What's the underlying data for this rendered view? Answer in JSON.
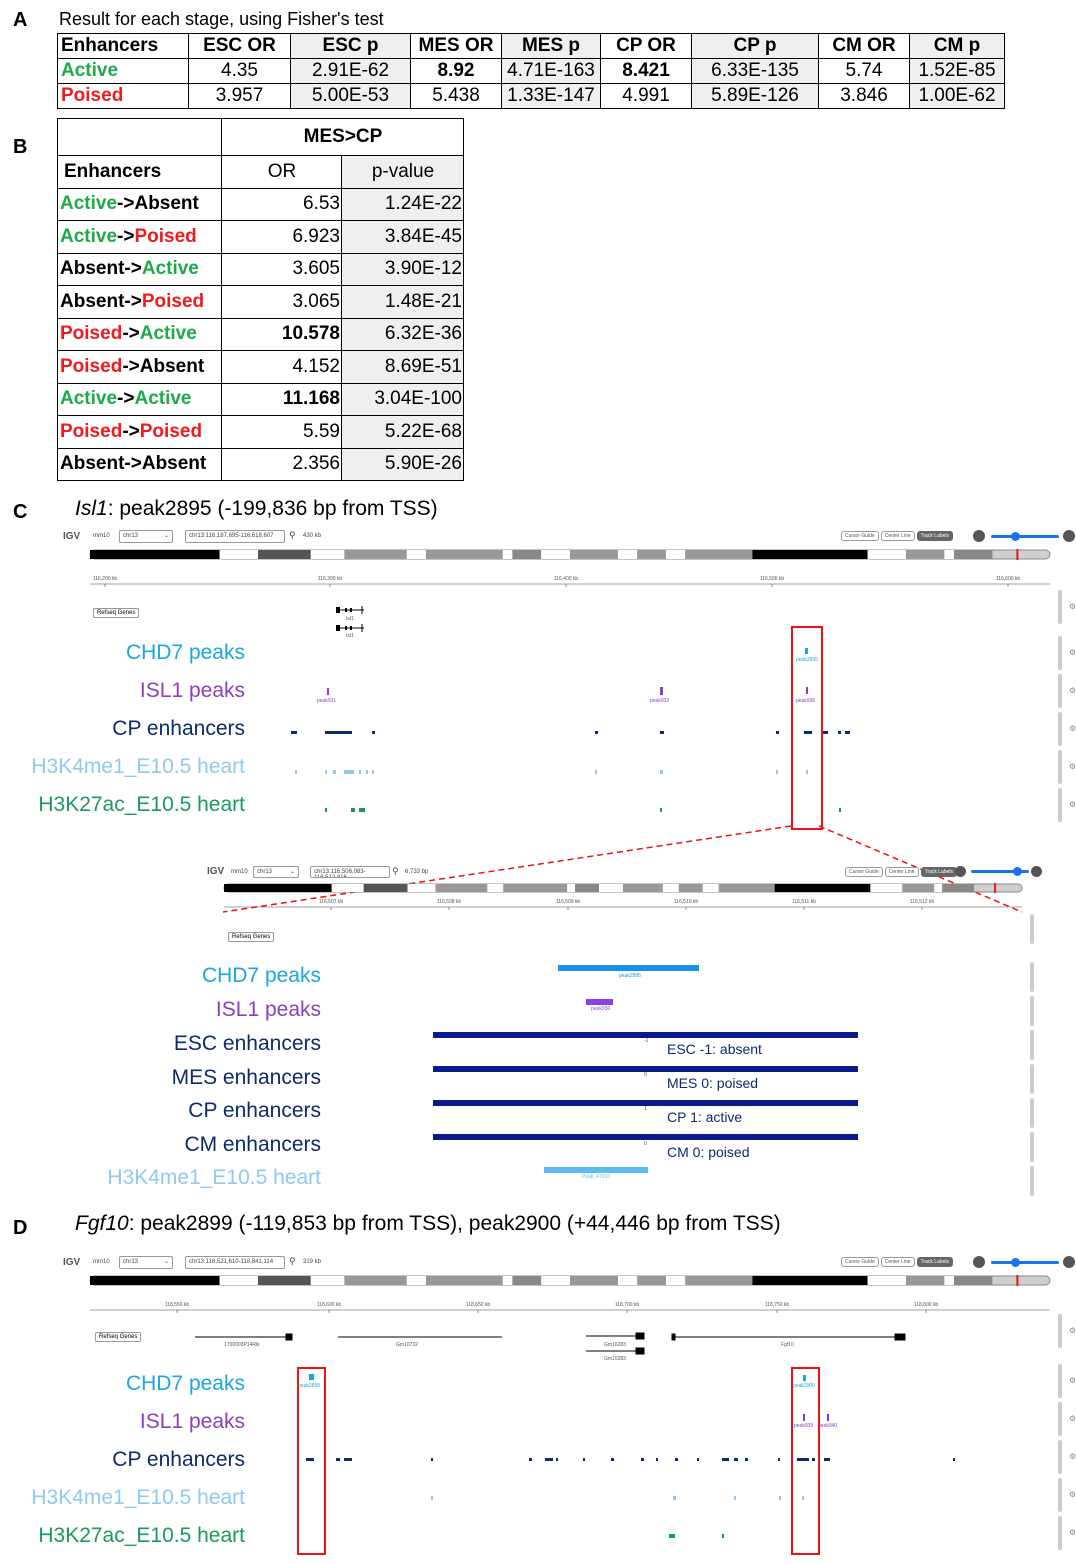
{
  "panel_labels": {
    "a": "A",
    "b": "B",
    "c": "C",
    "d": "D"
  },
  "panel_a": {
    "title": "Result for each stage, using Fisher's test",
    "headers": [
      "Enhancers",
      "ESC OR",
      "ESC p",
      "MES OR",
      "MES p",
      "CP OR",
      "CP p",
      "CM OR",
      "CM p"
    ],
    "rows": [
      {
        "label": "Active",
        "color": "#1faa4a",
        "values": [
          "4.35",
          "2.91E-62",
          "8.92",
          "4.71E-163",
          "8.421",
          "6.33E-135",
          "5.74",
          "1.52E-85"
        ]
      },
      {
        "label": "Poised",
        "color": "#ee1c1c",
        "values": [
          "3.957",
          "5.00E-53",
          "5.438",
          "1.33E-147",
          "4.991",
          "5.89E-126",
          "3.846",
          "1.00E-62"
        ]
      }
    ]
  },
  "panel_b": {
    "group_header": "MES>CP",
    "headers": [
      "Enhancers",
      "OR",
      "p-value"
    ],
    "rows": [
      {
        "from": "Active",
        "to": "Absent",
        "or": "6.53",
        "p": "1.24E-22"
      },
      {
        "from": "Active",
        "to": "Poised",
        "or": "6.923",
        "p": "3.84E-45"
      },
      {
        "from": "Absent",
        "to": "Active",
        "or": "3.605",
        "p": "3.90E-12"
      },
      {
        "from": "Absent",
        "to": "Poised",
        "or": "3.065",
        "p": "1.48E-21"
      },
      {
        "from": "Poised",
        "to": "Active",
        "or": "10.578",
        "p": "6.32E-36"
      },
      {
        "from": "Poised",
        "to": "Absent",
        "or": "4.152",
        "p": "8.69E-51"
      },
      {
        "from": "Active",
        "to": "Active",
        "or": "11.168",
        "p": "3.04E-100"
      },
      {
        "from": "Poised",
        "to": "Poised",
        "or": "5.59",
        "p": "5.22E-68"
      },
      {
        "from": "Absent",
        "to": "Absent",
        "or": "2.356",
        "p": "5.90E-26"
      }
    ],
    "arrow": "->",
    "state_colors": {
      "Active": "#1faa4a",
      "Poised": "#ee1c1c",
      "Absent": "#000000"
    }
  },
  "panel_c": {
    "gene": "Isl1",
    "title_rest": ": peak2895 (-199,836 bp from TSS)",
    "igv1": {
      "logo": "IGV",
      "genome": "mm10",
      "chrom": "chr13",
      "locus": "chr13:116,187,695-116,618,607",
      "width_text": "430 kb",
      "buttons": [
        "Cursor Guide",
        "Center Line",
        "Track Labels"
      ],
      "ruler": [
        "116,200 kb",
        "116,300 kb",
        "116,400 kb",
        "116,500 kb",
        "116,600 kb"
      ],
      "refseq_label": "Refseq Genes",
      "genes": [
        "Isl1",
        "Isl1"
      ],
      "peaks": {
        "chd7": [
          "peak2895"
        ],
        "isl1": [
          "peak931",
          "peak932",
          "peak936"
        ]
      }
    },
    "tracks1": [
      {
        "label": "CHD7 peaks",
        "color": "#1aa7e0"
      },
      {
        "label": "ISL1 peaks",
        "color": "#8a3fbf"
      },
      {
        "label": "CP enhancers",
        "color": "#0d2a6b"
      },
      {
        "label": "H3K4me1_E10.5 heart",
        "color": "#8fc9ee"
      },
      {
        "label": "H3K27ac_E10.5 heart",
        "color": "#1a9a5a"
      }
    ],
    "igv2": {
      "logo": "IGV",
      "genome": "mm10",
      "chrom": "chr13",
      "locus": "chr13:116,506,083-116,512,816",
      "width_text": "6,733 bp",
      "buttons": [
        "Cursor Guide",
        "Center Line",
        "Track Labels"
      ],
      "ruler": [
        "116,507 kb",
        "116,508 kb",
        "116,509 kb",
        "116,510 kb",
        "116,511 kb",
        "116,512 kb"
      ],
      "refseq_label": "Refseq Genes",
      "feature_labels": [
        "peak2895",
        "peak936",
        "Peak_47910"
      ]
    },
    "tracks2": [
      {
        "label": "CHD7 peaks",
        "color": "#1aa7e0"
      },
      {
        "label": "ISL1 peaks",
        "color": "#8a3fbf"
      },
      {
        "label": "ESC enhancers",
        "color": "#0d2a6b",
        "state": "ESC -1: absent",
        "score": "-1"
      },
      {
        "label": "MES enhancers",
        "color": "#0d2a6b",
        "state": "MES 0: poised",
        "score": "0"
      },
      {
        "label": "CP enhancers",
        "color": "#0d2a6b",
        "state": "CP 1: active",
        "score": "1"
      },
      {
        "label": "CM enhancers",
        "color": "#0d2a6b",
        "state": "CM 0: poised",
        "score": "0"
      },
      {
        "label": "H3K4me1_E10.5 heart",
        "color": "#8fc9ee"
      }
    ]
  },
  "panel_d": {
    "gene": "Fgf10",
    "title_rest": ": peak2899 (-119,853 bp from TSS), peak2900 (+44,446 bp from TSS)",
    "igv": {
      "logo": "IGV",
      "genome": "mm10",
      "chrom": "chr13",
      "locus": "chr13:118,521,610-118,841,114",
      "width_text": "319 kb",
      "buttons": [
        "Cursor Guide",
        "Center Line",
        "Track Labels"
      ],
      "ruler": [
        "118,550 kb",
        "118,600 kb",
        "118,650 kb",
        "118,700 kb",
        "118,750 kb",
        "118,800 kb"
      ],
      "refseq_label": "Refseq Genes",
      "genes": [
        "1700003P14Rik",
        "Gm10732",
        "Gm16283",
        "Gm16283",
        "Fgf10"
      ],
      "peaks": {
        "chd7": [
          "peak2899",
          "peak2900"
        ],
        "isl1": [
          "peak939",
          "peak940"
        ]
      }
    },
    "tracks": [
      {
        "label": "CHD7 peaks",
        "color": "#1aa7e0"
      },
      {
        "label": "ISL1 peaks",
        "color": "#8a3fbf"
      },
      {
        "label": "CP enhancers",
        "color": "#0d2a6b"
      },
      {
        "label": "H3K4me1_E10.5 heart",
        "color": "#8fc9ee"
      },
      {
        "label": "H3K27ac_E10.5 heart",
        "color": "#1a9a5a"
      }
    ]
  }
}
